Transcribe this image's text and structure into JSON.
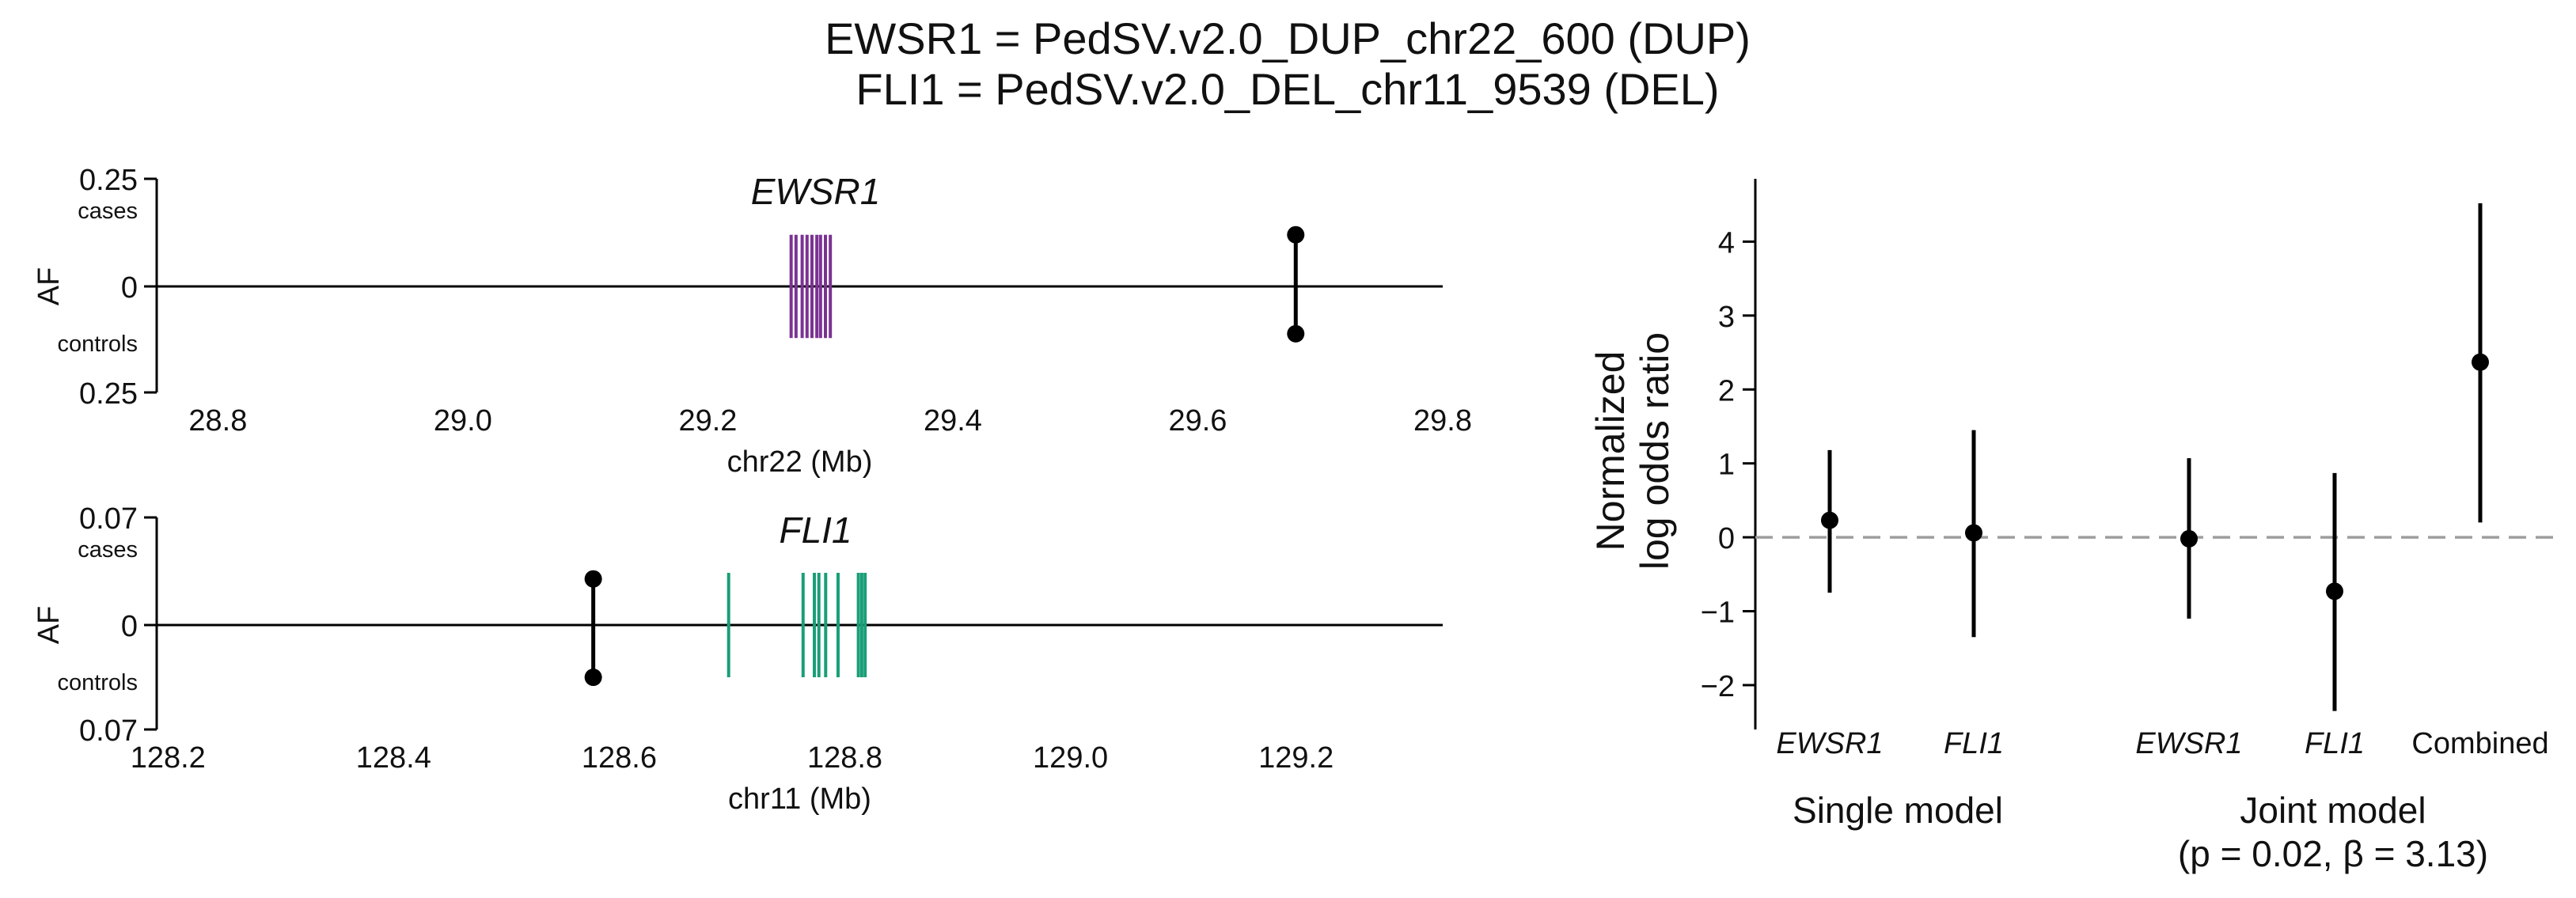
{
  "figure": {
    "title_line1": "EWSR1 = PedSV.v2.0_DUP_chr22_600 (DUP)",
    "title_line2": "FLI1 = PedSV.v2.0_DEL_chr11_9539 (DEL)"
  },
  "colors": {
    "axis": "#000000",
    "ewsr1_exons": "#7b3294",
    "fli1_exons": "#1a9e77",
    "points": "#000000",
    "zero_line": "#9e9e9e"
  },
  "chart_data": [
    {
      "type": "lollipop-track",
      "gene": "EWSR1",
      "xlabel": "chr22 (Mb)",
      "ylabel": "AF",
      "cases_label": "cases",
      "controls_label": "controls",
      "y_tick_labels": [
        "0.25",
        "0",
        "0.25"
      ],
      "ylim": [
        -0.25,
        0.25
      ],
      "xlim": [
        28.75,
        29.8
      ],
      "x_ticks": [
        28.8,
        29.0,
        29.2,
        29.4,
        29.6,
        29.8
      ],
      "x_tick_labels": [
        "28.8",
        "29.0",
        "29.2",
        "29.4",
        "29.6",
        "29.8"
      ],
      "exons_mb": [
        29.268,
        29.272,
        29.277,
        29.281,
        29.285,
        29.289,
        29.292,
        29.296,
        29.3
      ],
      "exon_halfheight_af": 0.12,
      "sv": {
        "position_mb": 29.68,
        "case_af": 0.12,
        "control_af": 0.11
      }
    },
    {
      "type": "lollipop-track",
      "gene": "FLI1",
      "xlabel": "chr11 (Mb)",
      "ylabel": "AF",
      "cases_label": "cases",
      "controls_label": "controls",
      "y_tick_labels": [
        "0.07",
        "0",
        "0.07"
      ],
      "ylim": [
        -0.07,
        0.07
      ],
      "xlim": [
        128.19,
        129.33
      ],
      "x_ticks": [
        128.2,
        128.4,
        128.6,
        128.8,
        129.0,
        129.2
      ],
      "x_tick_labels": [
        "128.2",
        "128.4",
        "128.6",
        "128.8",
        "129.0",
        "129.2"
      ],
      "exons_mb": [
        128.697,
        128.763,
        128.773,
        128.777,
        128.783,
        128.794,
        128.812,
        128.815,
        128.818
      ],
      "exon_halfheight_af": 0.034,
      "sv": {
        "position_mb": 128.577,
        "case_af": 0.03,
        "control_af": 0.034
      }
    },
    {
      "type": "errorbar",
      "ylabel_line1": "Normalized",
      "ylabel_line2": "log odds ratio",
      "ylim": [
        -2.6,
        4.85
      ],
      "y_ticks": [
        -2,
        -1,
        0,
        1,
        2,
        3,
        4
      ],
      "y_tick_labels": [
        "−2",
        "−1",
        "0",
        "1",
        "2",
        "3",
        "4"
      ],
      "reference_line_y": 0,
      "points": [
        {
          "label": "EWSR1",
          "italic": true,
          "estimate": 0.23,
          "low": -0.75,
          "high": 1.18
        },
        {
          "label": "FLI1",
          "italic": true,
          "estimate": 0.06,
          "low": -1.35,
          "high": 1.45
        },
        {
          "label": "EWSR1",
          "italic": true,
          "estimate": -0.02,
          "low": -1.1,
          "high": 1.07
        },
        {
          "label": "FLI1",
          "italic": true,
          "estimate": -0.73,
          "low": -2.35,
          "high": 0.87
        },
        {
          "label": "Combined",
          "italic": false,
          "estimate": 2.37,
          "low": 0.2,
          "high": 4.52
        }
      ],
      "groups": [
        {
          "label_line1": "Single model",
          "label_line2": ""
        },
        {
          "label_line1": "Joint model",
          "label_line2": "(p = 0.02, β = 3.13)"
        }
      ]
    }
  ]
}
